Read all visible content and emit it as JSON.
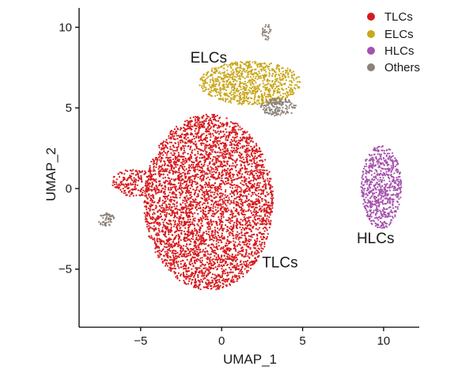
{
  "chart_data": {
    "type": "scatter",
    "xlabel": "UMAP_1",
    "ylabel": "UMAP_2",
    "xlim": [
      -8.8,
      12.2
    ],
    "ylim": [
      -8.6,
      11.2
    ],
    "xticks": [
      {
        "value": -5,
        "label": "−5"
      },
      {
        "value": 0,
        "label": "0"
      },
      {
        "value": 5,
        "label": "5"
      },
      {
        "value": 10,
        "label": "10"
      }
    ],
    "yticks": [
      {
        "value": 10,
        "label": "10"
      },
      {
        "value": 5,
        "label": "5"
      },
      {
        "value": 0,
        "label": "0"
      },
      {
        "value": -5,
        "label": "−5"
      }
    ],
    "legend": {
      "position": "top-right",
      "entries": [
        {
          "name": "TLCs",
          "color": "#d7191c"
        },
        {
          "name": "ELCs",
          "color": "#c9a81d"
        },
        {
          "name": "HLCs",
          "color": "#a552ad"
        },
        {
          "name": "Others",
          "color": "#8c8279"
        }
      ]
    },
    "series": [
      {
        "name": "TLCs",
        "color": "#d7191c",
        "label": "TLCs",
        "label_at": [
          3.6,
          -4.9
        ],
        "regions": [
          {
            "x": [
              -4.8,
              3.2
            ],
            "y": [
              -6.3,
              4.6
            ],
            "approx_points": 4200
          },
          {
            "x": [
              -6.8,
              -4.0
            ],
            "y": [
              -0.5,
              1.2
            ],
            "approx_points": 200
          }
        ]
      },
      {
        "name": "ELCs",
        "color": "#c9a81d",
        "label": "ELCs",
        "label_at": [
          -0.8,
          7.8
        ],
        "regions": [
          {
            "x": [
              -1.4,
              4.9
            ],
            "y": [
              5.2,
              7.9
            ],
            "approx_points": 900
          }
        ]
      },
      {
        "name": "HLCs",
        "color": "#a552ad",
        "label": "HLCs",
        "label_at": [
          9.5,
          -3.4
        ],
        "regions": [
          {
            "x": [
              8.6,
              11.1
            ],
            "y": [
              -2.5,
              2.7
            ],
            "approx_points": 700
          }
        ]
      },
      {
        "name": "Others",
        "color": "#8c8279",
        "regions": [
          {
            "x": [
              2.4,
              4.6
            ],
            "y": [
              4.5,
              5.6
            ],
            "approx_points": 160
          },
          {
            "x": [
              2.5,
              3.1
            ],
            "y": [
              9.2,
              10.2
            ],
            "approx_points": 30
          },
          {
            "x": [
              -7.6,
              -6.6
            ],
            "y": [
              -2.4,
              -1.5
            ],
            "approx_points": 50
          }
        ]
      }
    ]
  }
}
